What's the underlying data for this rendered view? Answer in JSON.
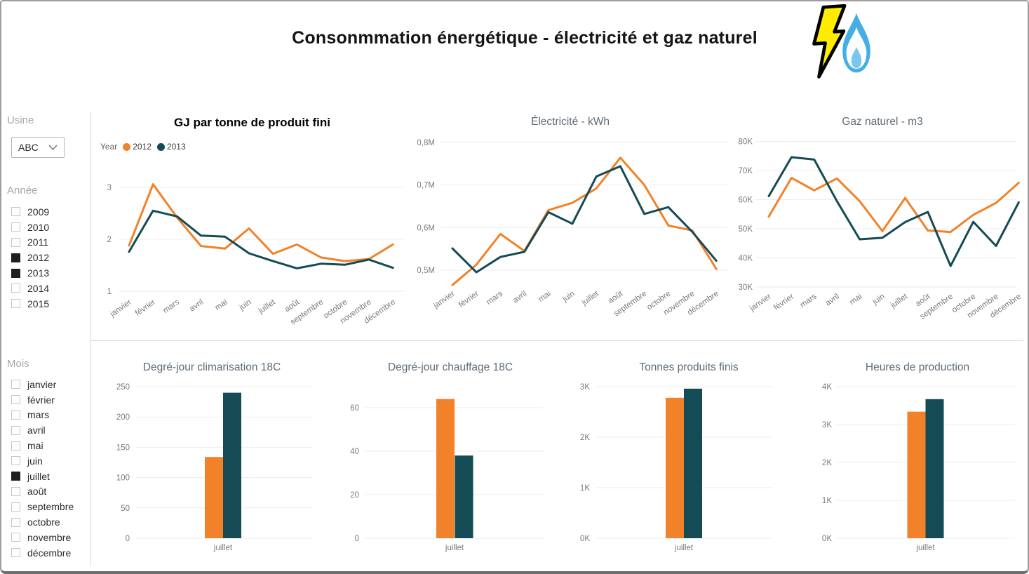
{
  "app": {
    "title": "Consonmmation énergétique - électricité et gaz naturel"
  },
  "colors": {
    "2012": "#F1822A",
    "2013": "#144B55",
    "grid": "#ececec",
    "axis_text": "#7a7a7a",
    "bolt_yellow": "#FFEC00",
    "flame_blue": "#45AFE4",
    "flame_inner": "#FDFEFF",
    "flame_drop": "#7AC6EE"
  },
  "sidebar": {
    "usine": {
      "label": "Usine",
      "selected": "ABC"
    },
    "annee": {
      "label": "Année",
      "options": [
        {
          "label": "2009",
          "checked": false
        },
        {
          "label": "2010",
          "checked": false
        },
        {
          "label": "2011",
          "checked": false
        },
        {
          "label": "2012",
          "checked": true
        },
        {
          "label": "2013",
          "checked": true
        },
        {
          "label": "2014",
          "checked": false
        },
        {
          "label": "2015",
          "checked": false
        }
      ]
    },
    "mois": {
      "label": "Mois",
      "options": [
        {
          "label": "janvier",
          "checked": false
        },
        {
          "label": "février",
          "checked": false
        },
        {
          "label": "mars",
          "checked": false
        },
        {
          "label": "avril",
          "checked": false
        },
        {
          "label": "mai",
          "checked": false
        },
        {
          "label": "juin",
          "checked": false
        },
        {
          "label": "juillet",
          "checked": true
        },
        {
          "label": "août",
          "checked": false
        },
        {
          "label": "septembre",
          "checked": false
        },
        {
          "label": "octobre",
          "checked": false
        },
        {
          "label": "novembre",
          "checked": false
        },
        {
          "label": "décembre",
          "checked": false
        }
      ]
    }
  },
  "chart_data": [
    {
      "id": "gj",
      "type": "line",
      "title": "GJ par tonne de produit fini",
      "legend": {
        "label": "Year",
        "entries": [
          "2012",
          "2013"
        ]
      },
      "categories": [
        "janvier",
        "février",
        "mars",
        "avril",
        "mai",
        "juin",
        "juillet",
        "août",
        "septembre",
        "octobre",
        "novembre",
        "décembre"
      ],
      "series": [
        {
          "name": "2012",
          "values": [
            1.88,
            3.06,
            2.42,
            1.87,
            1.82,
            2.21,
            1.72,
            1.9,
            1.65,
            1.58,
            1.62,
            1.9
          ]
        },
        {
          "name": "2013",
          "values": [
            1.76,
            2.55,
            2.44,
            2.07,
            2.05,
            1.73,
            1.58,
            1.44,
            1.53,
            1.51,
            1.61,
            1.45
          ]
        }
      ],
      "ylim": [
        1,
        3.2
      ],
      "yticks": [
        {
          "value": 3,
          "label": "3"
        },
        {
          "value": 2,
          "label": "2"
        },
        {
          "value": 1,
          "label": "1"
        }
      ],
      "legend_position": "top-left",
      "grid": true
    },
    {
      "id": "elec",
      "type": "line",
      "title": "Électricité - kWh",
      "unit": "millions kWh",
      "categories": [
        "janvier",
        "février",
        "mars",
        "avril",
        "mai",
        "juin",
        "juillet",
        "août",
        "septembre",
        "octobre",
        "novembre",
        "décembre"
      ],
      "series": [
        {
          "name": "2012",
          "values": [
            0.465,
            0.513,
            0.585,
            0.545,
            0.641,
            0.658,
            0.692,
            0.764,
            0.7,
            0.605,
            0.593,
            0.503
          ]
        },
        {
          "name": "2013",
          "values": [
            0.551,
            0.495,
            0.531,
            0.543,
            0.636,
            0.609,
            0.72,
            0.744,
            0.632,
            0.648,
            0.59,
            0.522
          ]
        }
      ],
      "ylim": [
        0.44,
        0.8
      ],
      "yticks": [
        {
          "value": 0.8,
          "label": "0,8M"
        },
        {
          "value": 0.7,
          "label": "0,7M"
        },
        {
          "value": 0.6,
          "label": "0,6M"
        },
        {
          "value": 0.5,
          "label": "0,5M"
        }
      ],
      "grid": true
    },
    {
      "id": "gaz",
      "type": "line",
      "title": "Gaz naturel - m3",
      "unit": "milliers m3",
      "categories": [
        "janvier",
        "février",
        "mars",
        "avril",
        "mai",
        "juin",
        "juillet",
        "août",
        "septembre",
        "octobre",
        "novembre",
        "décembre"
      ],
      "series": [
        {
          "name": "2012",
          "values": [
            54.2,
            67.5,
            63.2,
            67.3,
            59.5,
            49.2,
            60.6,
            49.4,
            48.9,
            54.8,
            58.9,
            65.8
          ]
        },
        {
          "name": "2013",
          "values": [
            61.2,
            74.6,
            73.8,
            59.5,
            46.4,
            46.9,
            52.3,
            55.8,
            37.2,
            52.4,
            44.1,
            59.1
          ]
        }
      ],
      "ylim": [
        30,
        80
      ],
      "yticks": [
        {
          "value": 80,
          "label": "80K"
        },
        {
          "value": 70,
          "label": "70K"
        },
        {
          "value": 60,
          "label": "60K"
        },
        {
          "value": 50,
          "label": "50K"
        },
        {
          "value": 40,
          "label": "40K"
        },
        {
          "value": 30,
          "label": "30K"
        }
      ],
      "grid": true
    },
    {
      "id": "clim",
      "type": "bar",
      "title": "Degré-jour climarisation 18C",
      "categories": [
        "juillet"
      ],
      "series": [
        {
          "name": "2012",
          "values": [
            134
          ]
        },
        {
          "name": "2013",
          "values": [
            240
          ]
        }
      ],
      "ylim": [
        0,
        250
      ],
      "yticks": [
        {
          "value": 250,
          "label": "250"
        },
        {
          "value": 200,
          "label": "200"
        },
        {
          "value": 150,
          "label": "150"
        },
        {
          "value": 100,
          "label": "100"
        },
        {
          "value": 50,
          "label": "50"
        },
        {
          "value": 0,
          "label": "0"
        }
      ],
      "grid": true
    },
    {
      "id": "chauf",
      "type": "bar",
      "title": "Degré-jour chauffage 18C",
      "categories": [
        "juillet"
      ],
      "series": [
        {
          "name": "2012",
          "values": [
            64
          ]
        },
        {
          "name": "2013",
          "values": [
            38
          ]
        }
      ],
      "ylim": [
        0,
        70
      ],
      "yticks": [
        {
          "value": 60,
          "label": "60"
        },
        {
          "value": 40,
          "label": "40"
        },
        {
          "value": 20,
          "label": "20"
        },
        {
          "value": 0,
          "label": "0"
        }
      ],
      "grid": true
    },
    {
      "id": "tonnes",
      "type": "bar",
      "title": "Tonnes produits finis",
      "unit": "milliers",
      "categories": [
        "juillet"
      ],
      "series": [
        {
          "name": "2012",
          "values": [
            2.78
          ]
        },
        {
          "name": "2013",
          "values": [
            2.96
          ]
        }
      ],
      "ylim": [
        0,
        3
      ],
      "yticks": [
        {
          "value": 3,
          "label": "3K"
        },
        {
          "value": 2,
          "label": "2K"
        },
        {
          "value": 1,
          "label": "1K"
        },
        {
          "value": 0,
          "label": "0K"
        }
      ],
      "grid": true
    },
    {
      "id": "heures",
      "type": "bar",
      "title": "Heures de production",
      "unit": "milliers",
      "categories": [
        "juillet"
      ],
      "series": [
        {
          "name": "2012",
          "values": [
            3.34
          ]
        },
        {
          "name": "2013",
          "values": [
            3.67
          ]
        }
      ],
      "ylim": [
        0,
        4
      ],
      "yticks": [
        {
          "value": 4,
          "label": "4K"
        },
        {
          "value": 3,
          "label": "3K"
        },
        {
          "value": 2,
          "label": "2K"
        },
        {
          "value": 1,
          "label": "1K"
        },
        {
          "value": 0,
          "label": "0K"
        }
      ],
      "grid": true
    }
  ]
}
